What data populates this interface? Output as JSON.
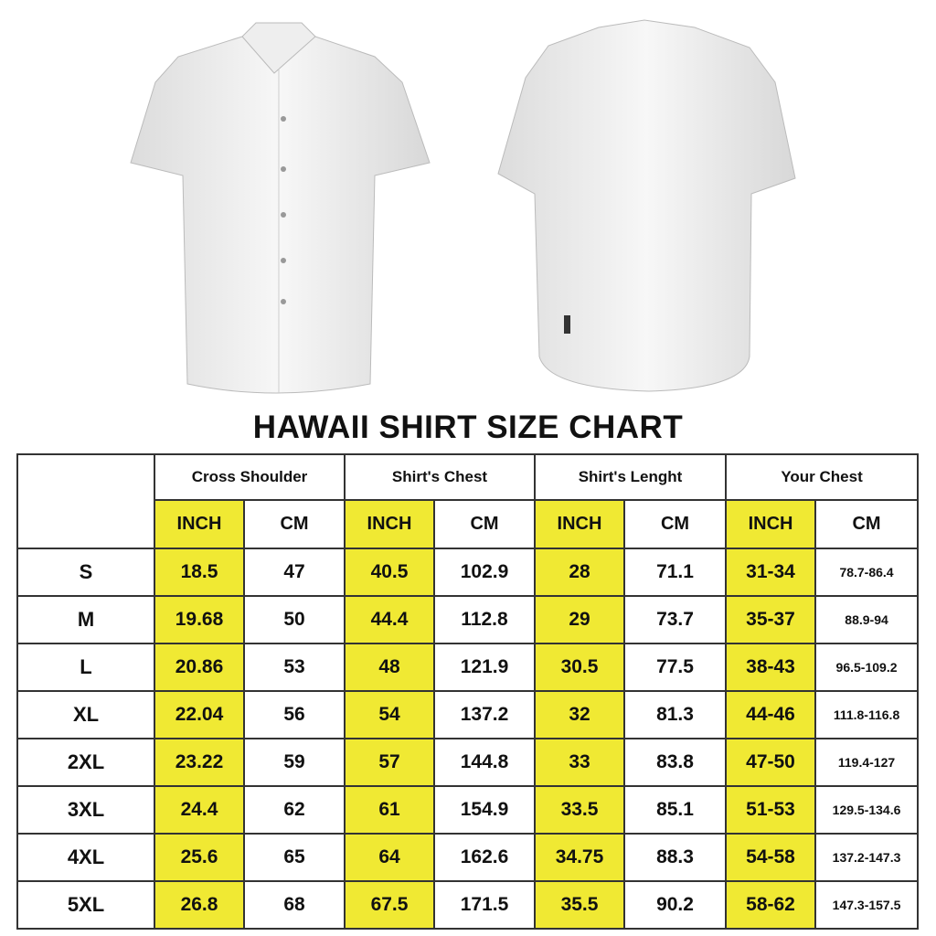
{
  "title": "HAWAII SHIRT SIZE CHART",
  "colors": {
    "inch_highlight": "#f0e933",
    "border": "#333333"
  },
  "images": [
    "shirt-front",
    "shirt-back"
  ],
  "groups": [
    "Cross Shoulder",
    "Shirt's Chest",
    "Shirt's Lenght",
    "Your Chest"
  ],
  "units": [
    "INCH",
    "CM",
    "INCH",
    "CM",
    "INCH",
    "CM",
    "INCH",
    "CM"
  ],
  "rows": [
    {
      "size": "S",
      "values": [
        "18.5",
        "47",
        "40.5",
        "102.9",
        "28",
        "71.1",
        "31-34",
        "78.7-86.4"
      ]
    },
    {
      "size": "M",
      "values": [
        "19.68",
        "50",
        "44.4",
        "112.8",
        "29",
        "73.7",
        "35-37",
        "88.9-94"
      ]
    },
    {
      "size": "L",
      "values": [
        "20.86",
        "53",
        "48",
        "121.9",
        "30.5",
        "77.5",
        "38-43",
        "96.5-109.2"
      ]
    },
    {
      "size": "XL",
      "values": [
        "22.04",
        "56",
        "54",
        "137.2",
        "32",
        "81.3",
        "44-46",
        "111.8-116.8"
      ]
    },
    {
      "size": "2XL",
      "values": [
        "23.22",
        "59",
        "57",
        "144.8",
        "33",
        "83.8",
        "47-50",
        "119.4-127"
      ]
    },
    {
      "size": "3XL",
      "values": [
        "24.4",
        "62",
        "61",
        "154.9",
        "33.5",
        "85.1",
        "51-53",
        "129.5-134.6"
      ]
    },
    {
      "size": "4XL",
      "values": [
        "25.6",
        "65",
        "64",
        "162.6",
        "34.75",
        "88.3",
        "54-58",
        "137.2-147.3"
      ]
    },
    {
      "size": "5XL",
      "values": [
        "26.8",
        "68",
        "67.5",
        "171.5",
        "35.5",
        "90.2",
        "58-62",
        "147.3-157.5"
      ]
    }
  ]
}
